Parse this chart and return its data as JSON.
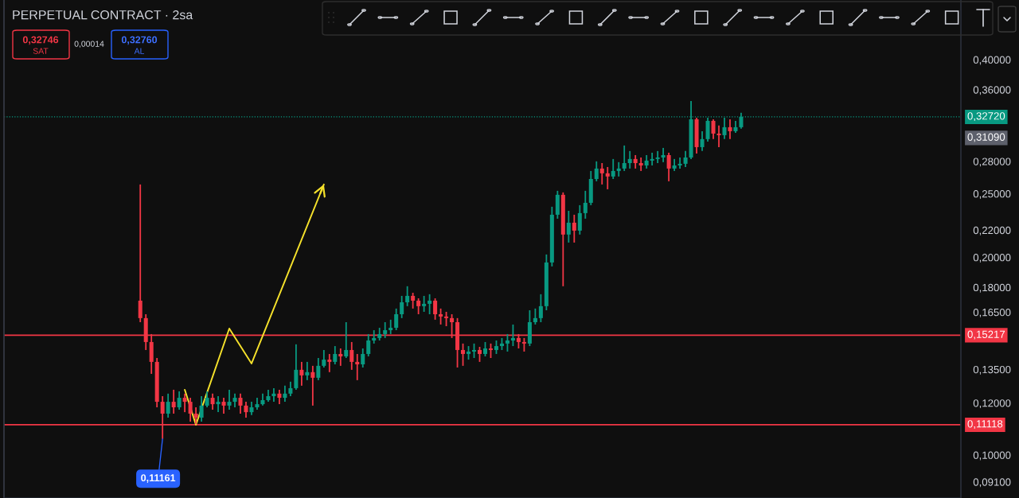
{
  "chart_data": {
    "type": "candlestick",
    "title": "PERPETUAL CONTRACT · 2sa",
    "categories": [
      null,
      null,
      null,
      null,
      null,
      null,
      null,
      null,
      null,
      null,
      null,
      null,
      null,
      null,
      null,
      null,
      null,
      null,
      null,
      null,
      null,
      null,
      null,
      null,
      null,
      null,
      null,
      null,
      null,
      null,
      null,
      null,
      null,
      null,
      null,
      null,
      null,
      null,
      null,
      null,
      null,
      null,
      null,
      null,
      null,
      null,
      null,
      null,
      null,
      null,
      null,
      null,
      null,
      null,
      null,
      null,
      null,
      null,
      null,
      null,
      null,
      null,
      null,
      null,
      null,
      null,
      null,
      null,
      null,
      null,
      null,
      null,
      null,
      null,
      null,
      null,
      null,
      null,
      null,
      null,
      null,
      null,
      null,
      null,
      null,
      null,
      null,
      null,
      null,
      null,
      null,
      null,
      null,
      null,
      null,
      null,
      null,
      null,
      null,
      null,
      null,
      null,
      null,
      null,
      null,
      null,
      null,
      null,
      null,
      null,
      null,
      null,
      null,
      null,
      null,
      null,
      null,
      null,
      null,
      null,
      null,
      null,
      null,
      null,
      null,
      null,
      null,
      null,
      null,
      null,
      null,
      null,
      null,
      null,
      null,
      null,
      null,
      null,
      null,
      null,
      null,
      null,
      null,
      null,
      null,
      null,
      null,
      null,
      null,
      null,
      null,
      null,
      null,
      null,
      null,
      null,
      null,
      null,
      null,
      null,
      null,
      null,
      null,
      null,
      null,
      null,
      null,
      null,
      null,
      null,
      null,
      null
    ],
    "ohlc": [
      null,
      null,
      null,
      null,
      null,
      null,
      null,
      null,
      null,
      null,
      null,
      null,
      null,
      null,
      null,
      null,
      null,
      null,
      null,
      null,
      null,
      null,
      null,
      null,
      [
        0.1718,
        0.2582,
        0.1593,
        0.1616
      ],
      [
        0.1616,
        0.1638,
        0.1445,
        0.1486
      ],
      [
        0.1486,
        0.1528,
        0.1329,
        0.1386
      ],
      [
        0.1386,
        0.1405,
        0.1182,
        0.1205
      ],
      [
        0.1205,
        0.1229,
        0.1058,
        0.1156
      ],
      [
        0.1156,
        0.124,
        0.114,
        0.1205
      ],
      [
        0.1205,
        0.1257,
        0.1156,
        0.1182
      ],
      [
        0.1182,
        0.125,
        0.1172,
        0.1222
      ],
      [
        0.1222,
        0.124,
        0.1162,
        0.1205
      ],
      [
        0.1205,
        0.1222,
        0.1124,
        0.1156
      ],
      [
        0.1156,
        0.1182,
        0.1115,
        0.114
      ],
      [
        0.114,
        0.1229,
        0.1124,
        0.1189
      ],
      [
        0.1189,
        0.125,
        0.1182,
        0.1222
      ],
      [
        0.1222,
        0.124,
        0.1172,
        0.1195
      ],
      [
        0.1195,
        0.1229,
        0.1162,
        0.1205
      ],
      [
        0.1205,
        0.1222,
        0.1156,
        0.1189
      ],
      [
        0.1189,
        0.1257,
        0.1172,
        0.1205
      ],
      [
        0.1205,
        0.124,
        0.1182,
        0.1222
      ],
      [
        0.1222,
        0.124,
        0.1156,
        0.1189
      ],
      [
        0.1189,
        0.1205,
        0.114,
        0.1162
      ],
      [
        0.1162,
        0.1205,
        0.115,
        0.1182
      ],
      [
        0.1182,
        0.1222,
        0.1172,
        0.1195
      ],
      [
        0.1195,
        0.124,
        0.1189,
        0.1212
      ],
      [
        0.1212,
        0.1257,
        0.1205,
        0.1229
      ],
      [
        0.1229,
        0.1264,
        0.1205,
        0.124
      ],
      [
        0.124,
        0.1257,
        0.1195,
        0.1222
      ],
      [
        0.1222,
        0.1275,
        0.1205,
        0.124
      ],
      [
        0.124,
        0.1293,
        0.1229,
        0.1264
      ],
      [
        0.1264,
        0.1474,
        0.1257,
        0.1348
      ],
      [
        0.1348,
        0.1386,
        0.1275,
        0.1322
      ],
      [
        0.1322,
        0.1386,
        0.13,
        0.1337
      ],
      [
        0.1337,
        0.1367,
        0.1189,
        0.1311
      ],
      [
        0.1311,
        0.1405,
        0.13,
        0.1367
      ],
      [
        0.1367,
        0.1445,
        0.1359,
        0.1397
      ],
      [
        0.1397,
        0.1425,
        0.1337,
        0.1386
      ],
      [
        0.1386,
        0.1465,
        0.1374,
        0.1425
      ],
      [
        0.1425,
        0.1453,
        0.1367,
        0.1413
      ],
      [
        0.1413,
        0.1593,
        0.1405,
        0.1445
      ],
      [
        0.1445,
        0.1486,
        0.1348,
        0.1386
      ],
      [
        0.1386,
        0.1425,
        0.13,
        0.1374
      ],
      [
        0.1374,
        0.1453,
        0.1359,
        0.1425
      ],
      [
        0.1425,
        0.1528,
        0.1413,
        0.1494
      ],
      [
        0.1494,
        0.1549,
        0.1478,
        0.1507
      ],
      [
        0.1507,
        0.1562,
        0.1494,
        0.1528
      ],
      [
        0.1528,
        0.1593,
        0.1507,
        0.1549
      ],
      [
        0.1549,
        0.1607,
        0.1528,
        0.1562
      ],
      [
        0.1562,
        0.1671,
        0.1549,
        0.1638
      ],
      [
        0.1638,
        0.1747,
        0.1616,
        0.1708
      ],
      [
        0.1708,
        0.1807,
        0.1685,
        0.1747
      ],
      [
        0.1747,
        0.1766,
        0.1671,
        0.1718
      ],
      [
        0.1718,
        0.1732,
        0.1638,
        0.1685
      ],
      [
        0.1685,
        0.1747,
        0.1652,
        0.1699
      ],
      [
        0.1699,
        0.1757,
        0.1638,
        0.1718
      ],
      [
        0.1718,
        0.1732,
        0.1607,
        0.1638
      ],
      [
        0.1638,
        0.1671,
        0.158,
        0.1625
      ],
      [
        0.1625,
        0.1652,
        0.1571,
        0.1616
      ],
      [
        0.1616,
        0.1638,
        0.1507,
        0.1593
      ],
      [
        0.1593,
        0.1616,
        0.1359,
        0.1445
      ],
      [
        0.1445,
        0.1478,
        0.1367,
        0.1425
      ],
      [
        0.1425,
        0.1465,
        0.1397,
        0.1437
      ],
      [
        0.1437,
        0.1478,
        0.1405,
        0.1445
      ],
      [
        0.1445,
        0.1461,
        0.1386,
        0.1425
      ],
      [
        0.1425,
        0.1486,
        0.1413,
        0.1453
      ],
      [
        0.1453,
        0.1478,
        0.1405,
        0.1445
      ],
      [
        0.1445,
        0.1494,
        0.1425,
        0.1465
      ],
      [
        0.1465,
        0.1507,
        0.1445,
        0.1478
      ],
      [
        0.1478,
        0.1528,
        0.1437,
        0.1494
      ],
      [
        0.1494,
        0.158,
        0.1465,
        0.1507
      ],
      [
        0.1507,
        0.1528,
        0.1453,
        0.1486
      ],
      [
        0.1486,
        0.1507,
        0.1437,
        0.1478
      ],
      [
        0.1478,
        0.1661,
        0.1465,
        0.1593
      ],
      [
        0.1593,
        0.1671,
        0.158,
        0.1616
      ],
      [
        0.1616,
        0.1757,
        0.1593,
        0.1685
      ],
      [
        0.1685,
        0.202,
        0.1661,
        0.1964
      ],
      [
        0.1964,
        0.2388,
        0.1937,
        0.2322
      ],
      [
        0.2322,
        0.2525,
        0.229,
        0.249
      ],
      [
        0.249,
        0.2511,
        0.1807,
        0.2166
      ],
      [
        0.2166,
        0.2354,
        0.2106,
        0.2258
      ],
      [
        0.2258,
        0.2322,
        0.2106,
        0.2196
      ],
      [
        0.2196,
        0.2401,
        0.2166,
        0.2335
      ],
      [
        0.2335,
        0.2525,
        0.229,
        0.2421
      ],
      [
        0.2421,
        0.2707,
        0.2401,
        0.2632
      ],
      [
        0.2632,
        0.28,
        0.2611,
        0.273
      ],
      [
        0.273,
        0.2783,
        0.2582,
        0.2685
      ],
      [
        0.2685,
        0.2745,
        0.2539,
        0.2655
      ],
      [
        0.2655,
        0.2823,
        0.2632,
        0.2707
      ],
      [
        0.2707,
        0.2792,
        0.2655,
        0.273
      ],
      [
        0.273,
        0.296,
        0.2707,
        0.2783
      ],
      [
        0.2783,
        0.2903,
        0.273,
        0.2823
      ],
      [
        0.2823,
        0.2862,
        0.273,
        0.2783
      ],
      [
        0.2783,
        0.2838,
        0.2707,
        0.276
      ],
      [
        0.276,
        0.2862,
        0.273,
        0.2807
      ],
      [
        0.2807,
        0.2886,
        0.276,
        0.2823
      ],
      [
        0.2823,
        0.2903,
        0.2783,
        0.2838
      ],
      [
        0.2838,
        0.2935,
        0.2792,
        0.2862
      ],
      [
        0.2862,
        0.2886,
        0.2611,
        0.273
      ],
      [
        0.273,
        0.2823,
        0.2707,
        0.276
      ],
      [
        0.276,
        0.2838,
        0.273,
        0.2776
      ],
      [
        0.2776,
        0.2903,
        0.2745,
        0.2838
      ],
      [
        0.2838,
        0.346,
        0.2823,
        0.3245
      ],
      [
        0.3245,
        0.3263,
        0.2878,
        0.2943
      ],
      [
        0.2943,
        0.3112,
        0.2903,
        0.3027
      ],
      [
        0.3027,
        0.3263,
        0.3001,
        0.3227
      ],
      [
        0.3227,
        0.3245,
        0.3027,
        0.3086
      ],
      [
        0.3086,
        0.3174,
        0.2943,
        0.3069
      ],
      [
        0.3069,
        0.3263,
        0.3027,
        0.3156
      ],
      [
        0.3156,
        0.3245,
        0.3027,
        0.3112
      ],
      [
        0.3112,
        0.3227,
        0.3095,
        0.3156
      ],
      [
        0.3156,
        0.3319,
        0.3139,
        0.3272
      ],
      null,
      null,
      null,
      null,
      null,
      null,
      null,
      null,
      null,
      null,
      null,
      null,
      null,
      null,
      null,
      null,
      null,
      null,
      null,
      null,
      null,
      null,
      null,
      null,
      null,
      null,
      null,
      null,
      null,
      null,
      null,
      null,
      null,
      null,
      null,
      null,
      null,
      null,
      null
    ],
    "colors": [
      null,
      null,
      null,
      null,
      null,
      null,
      null,
      null,
      null,
      null,
      null,
      null,
      null,
      null,
      null,
      null,
      null,
      null,
      null,
      null,
      null,
      null,
      null,
      null,
      "#f23645",
      "#f23645",
      "#f23645",
      "#f23645",
      "#f23645",
      "#089981",
      "#f23645",
      "#089981",
      "#f23645",
      "#f23645",
      "#f23645",
      "#089981",
      "#089981",
      "#f23645",
      "#089981",
      "#f23645",
      "#089981",
      "#089981",
      "#f23645",
      "#f23645",
      "#089981",
      "#089981",
      "#089981",
      "#089981",
      "#089981",
      "#f23645",
      "#089981",
      "#089981",
      "#089981",
      "#f23645",
      "#089981",
      "#f23645",
      "#089981",
      "#089981",
      "#f23645",
      "#089981",
      "#f23645",
      "#089981",
      "#f23645",
      "#f23645",
      "#089981",
      "#089981",
      "#089981",
      "#089981",
      "#089981",
      "#089981",
      "#089981",
      "#089981",
      "#089981",
      "#f23645",
      "#f23645",
      "#089981",
      "#089981",
      "#f23645",
      "#f23645",
      "#f23645",
      "#f23645",
      "#f23645",
      "#f23645",
      "#089981",
      "#089981",
      "#f23645",
      "#089981",
      "#f23645",
      "#089981",
      "#089981",
      "#089981",
      "#089981",
      "#f23645",
      "#f23645",
      "#089981",
      "#089981",
      "#089981",
      "#089981",
      "#089981",
      "#089981",
      "#f23645",
      "#089981",
      "#f23645",
      "#089981",
      "#089981",
      "#089981",
      "#089981",
      "#f23645",
      "#f23645",
      "#089981",
      "#089981",
      "#089981",
      "#089981",
      "#f23645",
      "#f23645",
      "#089981",
      "#089981",
      "#089981",
      "#089981",
      "#f23645",
      "#089981",
      "#089981",
      "#089981",
      "#089981",
      "#f23645",
      "#089981",
      "#089981",
      "#f23645",
      "#f23645",
      "#089981",
      "#f23645",
      "#089981",
      "#089981",
      null,
      null,
      null,
      null,
      null,
      null,
      null,
      null,
      null,
      null,
      null,
      null,
      null,
      null,
      null,
      null,
      null,
      null,
      null,
      null,
      null,
      null,
      null,
      null,
      null,
      null,
      null,
      null,
      null,
      null,
      null,
      null,
      null,
      null,
      null,
      null,
      null,
      null,
      null
    ],
    "series": [
      {
        "type": "line",
        "color": "#f5e12b",
        "values": [
          null,
          null,
          null,
          null,
          null,
          null,
          null,
          null,
          null,
          null,
          null,
          null,
          null,
          null,
          null,
          null,
          null,
          null,
          null,
          null,
          null,
          null,
          null,
          null,
          null,
          null,
          null,
          null,
          null,
          null,
          null,
          null,
          0.1257,
          null,
          0.1112,
          null,
          null,
          null,
          null,
          null,
          0.1558,
          null,
          null,
          null,
          0.1378,
          null,
          null,
          null,
          null,
          null,
          null,
          null,
          null,
          null,
          null,
          null,
          null,
          0.2582,
          null,
          null,
          null,
          null,
          null,
          null,
          null,
          null,
          null,
          null,
          null,
          null,
          null,
          null,
          null,
          null,
          null,
          null,
          null,
          null,
          null,
          null,
          null,
          null,
          null,
          null,
          null,
          null,
          null,
          null,
          null,
          null,
          null,
          null,
          null,
          null,
          null,
          null,
          null,
          null,
          null,
          null,
          null,
          null,
          null,
          null,
          null,
          null,
          null,
          null,
          null,
          null,
          null,
          null,
          null,
          null,
          null,
          null,
          null,
          null,
          null,
          null,
          null,
          null,
          null,
          null,
          null,
          null,
          null,
          null,
          null,
          null,
          null,
          null,
          null,
          null,
          null,
          null,
          null,
          null,
          null,
          null,
          null,
          null,
          null,
          null,
          null,
          null,
          null,
          null,
          null,
          null,
          null,
          null,
          null,
          null,
          null,
          null,
          null,
          null,
          null,
          null,
          null,
          null,
          null,
          null,
          null,
          null,
          null,
          null,
          null,
          null,
          null,
          null
        ]
      }
    ],
    "log": true,
    "ylim": [
      0.086,
      0.493
    ],
    "yticks": [
      {
        "value": 0.091,
        "label": "0,09100"
      },
      {
        "value": 0.1,
        "label": "0,10000"
      },
      {
        "value": 0.12,
        "label": "0,12000"
      },
      {
        "value": 0.135,
        "label": "0,13500"
      },
      {
        "value": 0.165,
        "label": "0,16500"
      },
      {
        "value": 0.18,
        "label": "0,18000"
      },
      {
        "value": 0.2,
        "label": "0,20000"
      },
      {
        "value": 0.22,
        "label": "0,22000"
      },
      {
        "value": 0.25,
        "label": "0,25000"
      },
      {
        "value": 0.28,
        "label": "0,28000"
      },
      {
        "value": 0.36,
        "label": "0,36000"
      },
      {
        "value": 0.4,
        "label": "0,40000"
      }
    ],
    "tick_labels": "y",
    "ref_lines": [
      {
        "axis": "y",
        "value": 0.15217,
        "label": "0,15217",
        "color": "#f23645",
        "line_style": "solid"
      },
      {
        "axis": "y",
        "value": 0.11118,
        "label": "0,11118",
        "color": "#f23645",
        "line_style": "solid"
      },
      {
        "axis": "y",
        "value": 0.3272,
        "label": "0,32720",
        "color": "#089981",
        "line_style": "dotted"
      }
    ],
    "annotations": [
      "0,32746",
      "SAT",
      "0,00014",
      "0,32760",
      "AL",
      "0,31090",
      "0,11161"
    ]
  }
}
